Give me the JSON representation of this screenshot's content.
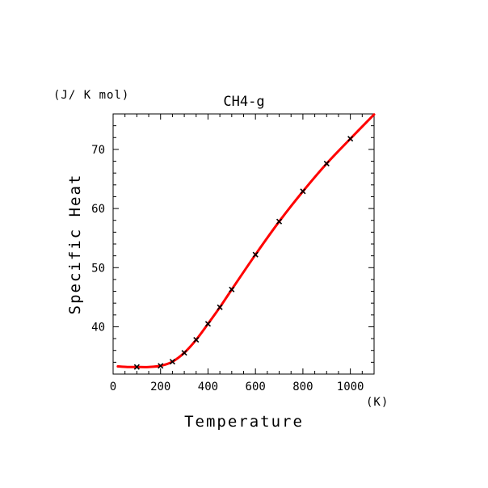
{
  "chart_data": {
    "type": "line",
    "title": "CH4-g",
    "xlabel": "Temperature",
    "ylabel": "Specific Heat",
    "x_unit": "(K)",
    "y_unit": "(J/ K mol)",
    "xlim": [
      0,
      1100
    ],
    "ylim": [
      32,
      76
    ],
    "x_ticks": [
      0,
      200,
      400,
      600,
      800,
      1000
    ],
    "x_tick_labels": [
      "0",
      "200",
      "400",
      "600",
      "800",
      "1000"
    ],
    "y_ticks": [
      40,
      50,
      60,
      70
    ],
    "y_tick_labels": [
      "40",
      "50",
      "60",
      "70"
    ],
    "grid": false,
    "colors": {
      "curve": "#ff0000",
      "markers": "#000000",
      "axes": "#000000"
    },
    "series": [
      {
        "style": "line",
        "x": [
          20,
          60,
          100,
          150,
          200,
          250,
          300,
          350,
          400,
          450,
          500,
          600,
          700,
          800,
          900,
          1000,
          1100
        ],
        "y": [
          33.3,
          33.2,
          33.2,
          33.2,
          33.4,
          34.1,
          35.6,
          37.8,
          40.5,
          43.3,
          46.3,
          52.2,
          57.8,
          62.9,
          67.6,
          71.8,
          75.9
        ]
      },
      {
        "style": "markers",
        "marker": "x",
        "x": [
          100,
          200,
          250,
          300,
          350,
          400,
          450,
          500,
          600,
          700,
          800,
          900,
          1000
        ],
        "y": [
          33.2,
          33.4,
          34.1,
          35.6,
          37.8,
          40.5,
          43.3,
          46.3,
          52.2,
          57.8,
          62.9,
          67.6,
          71.8
        ]
      }
    ]
  }
}
